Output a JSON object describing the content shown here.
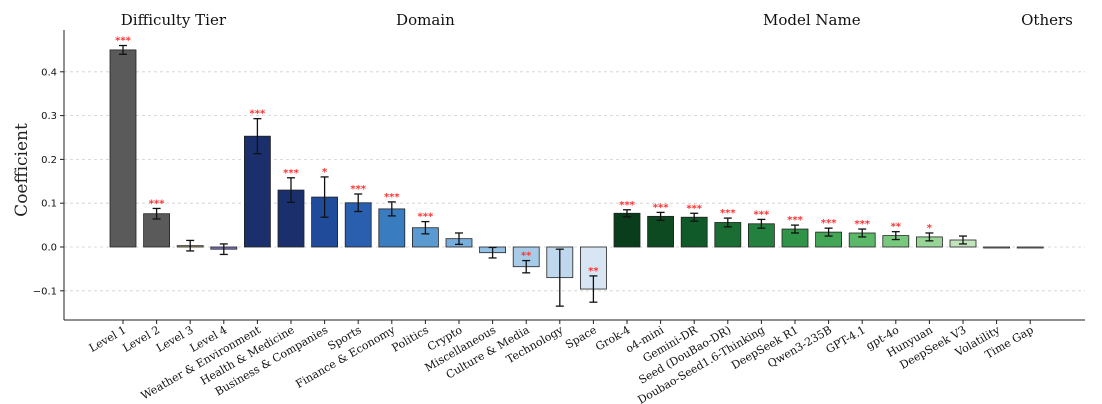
{
  "chart_data": {
    "type": "bar",
    "ylabel": "Coefficient",
    "ylim": [
      -0.16,
      0.49
    ],
    "yticks": [
      -0.1,
      0.0,
      0.1,
      0.2,
      0.3,
      0.4
    ],
    "ytick_labels": [
      "−0.1",
      "0.0",
      "0.1",
      "0.2",
      "0.3",
      "0.4"
    ],
    "grid": "horizontal dashed",
    "groups": [
      {
        "label": "Difficulty Tier",
        "start": 0,
        "end": 3
      },
      {
        "label": "Domain",
        "start": 4,
        "end": 14
      },
      {
        "label": "Model Name",
        "start": 15,
        "end": 26
      },
      {
        "label": "Others",
        "start": 27,
        "end": 28
      }
    ],
    "categories": [
      "Level 1",
      "Level 2",
      "Level 3",
      "Level 4",
      "Weather & Environment",
      "Health & Medicine",
      "Business & Companies",
      "Sports",
      "Finance & Economy",
      "Politics",
      "Crypto",
      "Miscellaneous",
      "Culture & Media",
      "Technology",
      "Space",
      "Grok-4",
      "o4-mini",
      "Gemini-DR",
      "Seed (DouBao-DR)",
      "Doubao-Seed1.6-Thinking",
      "DeepSeek R1",
      "Qwen3-235B",
      "GPT-4.1",
      "gpt-4o",
      "Hunyuan",
      "DeepSeek V3",
      "Volatility",
      "Time Gap"
    ],
    "values": [
      0.45,
      0.076,
      0.003,
      -0.005,
      0.253,
      0.13,
      0.114,
      0.101,
      0.087,
      0.044,
      0.019,
      -0.013,
      -0.045,
      -0.07,
      -0.096,
      0.077,
      0.07,
      0.068,
      0.056,
      0.053,
      0.041,
      0.034,
      0.032,
      0.026,
      0.023,
      0.016,
      0.0,
      0.0
    ],
    "errors": [
      0.01,
      0.012,
      0.012,
      0.012,
      0.04,
      0.028,
      0.046,
      0.02,
      0.016,
      0.014,
      0.013,
      0.012,
      0.014,
      0.065,
      0.03,
      0.008,
      0.009,
      0.009,
      0.01,
      0.01,
      0.009,
      0.009,
      0.009,
      0.009,
      0.009,
      0.009,
      0.0,
      0.0
    ],
    "significance": [
      "***",
      "***",
      "",
      "",
      "***",
      "***",
      "*",
      "***",
      "***",
      "***",
      "",
      "",
      "**",
      "",
      "**",
      "***",
      "***",
      "***",
      "***",
      "***",
      "***",
      "***",
      "***",
      "**",
      "*",
      "",
      "",
      ""
    ],
    "colors": [
      "#5a5a5a",
      "#5a5a5a",
      "#c8a060",
      "#7878c0",
      "#1a2f6b",
      "#1a2f6b",
      "#1f4b9a",
      "#2a5fb0",
      "#3a7cc0",
      "#5a9ad0",
      "#78aedc",
      "#94c0e4",
      "#a8cce8",
      "#c0d8ee",
      "#d8e6f4",
      "#0a3d1c",
      "#0d4a22",
      "#105a2a",
      "#1a6e34",
      "#23803e",
      "#2f9448",
      "#42a656",
      "#5ab868",
      "#78c87e",
      "#98d698",
      "#c2e4bc",
      "#e8f5e4",
      "#f2f9f0"
    ],
    "border_color": "#222222",
    "sig_color": "#ff3333"
  }
}
